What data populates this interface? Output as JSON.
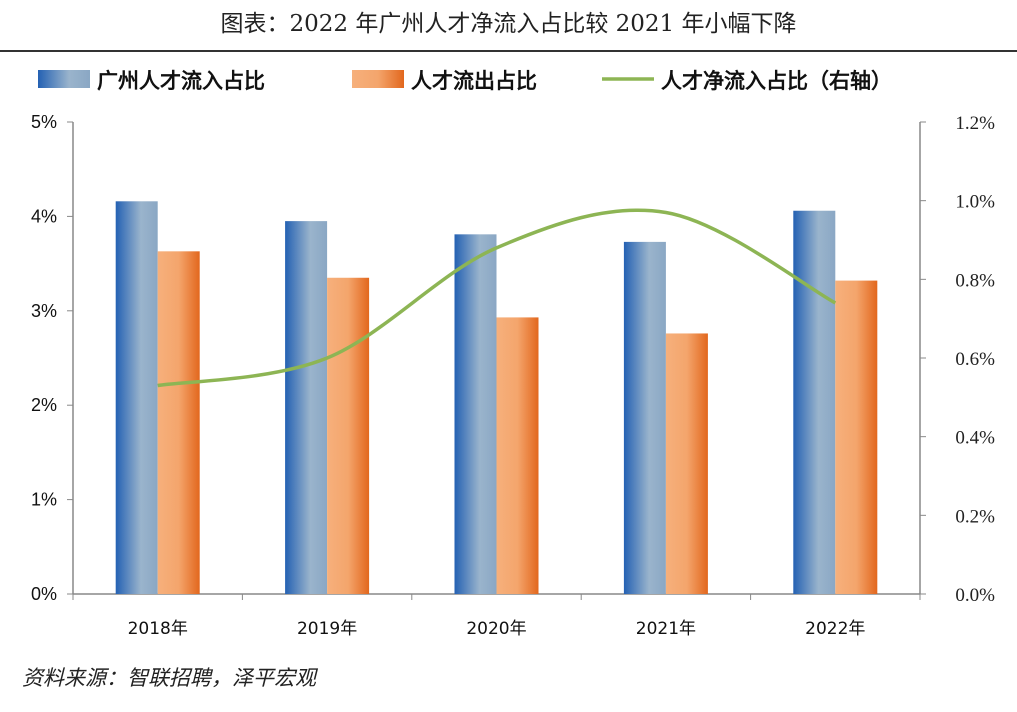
{
  "title": "图表：2022 年广州人才净流入占比较 2021 年小幅下降",
  "source": "资料来源：智联招聘，泽平宏观",
  "chart_data": {
    "type": "bar",
    "categories": [
      "2018年",
      "2019年",
      "2020年",
      "2021年",
      "2022年"
    ],
    "series": [
      {
        "name": "广州人才流入占比",
        "type": "bar",
        "axis": "left",
        "values": [
          4.16,
          3.95,
          3.81,
          3.73,
          4.06
        ],
        "color": "#2e6db5"
      },
      {
        "name": "人才流出占比",
        "type": "bar",
        "axis": "left",
        "values": [
          3.63,
          3.35,
          2.93,
          2.76,
          3.32
        ],
        "color": "#ec7a2c"
      },
      {
        "name": "人才净流入占比（右轴）",
        "type": "line",
        "axis": "right",
        "values": [
          0.53,
          0.6,
          0.88,
          0.97,
          0.74
        ],
        "color": "#8db554"
      }
    ],
    "left_axis": {
      "ylim": [
        0,
        5
      ],
      "ticks": [
        "0%",
        "1%",
        "2%",
        "3%",
        "4%",
        "5%"
      ]
    },
    "right_axis": {
      "ylim": [
        0,
        1.2
      ],
      "ticks": [
        "0.0%",
        "0.2%",
        "0.4%",
        "0.6%",
        "0.8%",
        "1.0%",
        "1.2%"
      ]
    },
    "legend": "top",
    "grid": false
  }
}
